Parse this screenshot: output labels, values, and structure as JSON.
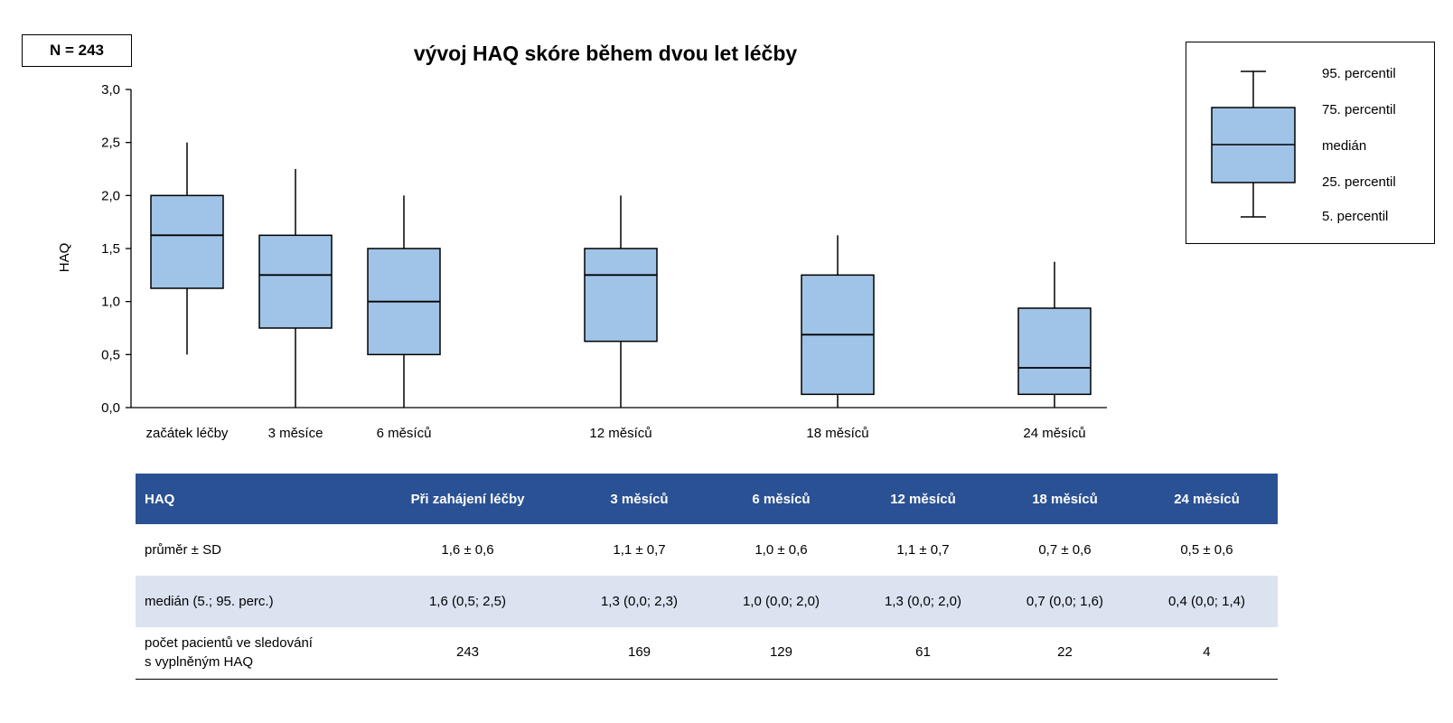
{
  "n_label": "N = 243",
  "chart_data": {
    "type": "boxplot",
    "title": "vývoj HAQ skóre během dvou let léčby",
    "ylabel": "HAQ",
    "ylim": [
      0,
      3
    ],
    "yticks": [
      "0,0",
      "0,5",
      "1,0",
      "1,5",
      "2,0",
      "2,5",
      "3,0"
    ],
    "categories": [
      "začátek léčby",
      "3 měsíce",
      "6 měsíců",
      "12 měsíců",
      "18 měsíců",
      "24 měsíců"
    ],
    "x_months": [
      0,
      3,
      6,
      12,
      18,
      24
    ],
    "boxes": [
      {
        "p5": 0.5,
        "q1": 1.125,
        "median": 1.625,
        "q3": 2.0,
        "p95": 2.5
      },
      {
        "p5": 0.0,
        "q1": 0.75,
        "median": 1.25,
        "q3": 1.625,
        "p95": 2.25
      },
      {
        "p5": 0.0,
        "q1": 0.5,
        "median": 1.0,
        "q3": 1.5,
        "p95": 2.0
      },
      {
        "p5": 0.0,
        "q1": 0.625,
        "median": 1.25,
        "q3": 1.5,
        "p95": 2.0
      },
      {
        "p5": 0.0,
        "q1": 0.125,
        "median": 0.6875,
        "q3": 1.25,
        "p95": 1.625
      },
      {
        "p5": 0.0,
        "q1": 0.125,
        "median": 0.375,
        "q3": 0.9375,
        "p95": 1.375
      }
    ],
    "colors": {
      "box_fill": "#9fc4e8",
      "stroke": "#000000"
    }
  },
  "legend": {
    "p95": "95. percentil",
    "q3": "75. percentil",
    "median": "medián",
    "q1": "25. percentil",
    "p5": "5. percentil"
  },
  "table": {
    "headers": [
      "HAQ",
      "Při zahájení léčby",
      "3 měsíců",
      "6 měsíců",
      "12 měsíců",
      "18 měsíců",
      "24 měsíců"
    ],
    "rows": [
      {
        "label": "průměr ± SD",
        "values": [
          "1,6 ± 0,6",
          "1,1 ± 0,7",
          "1,0 ± 0,6",
          "1,1 ± 0,7",
          "0,7 ± 0,6",
          "0,5 ± 0,6"
        ]
      },
      {
        "label": "medián (5.; 95. perc.)",
        "values": [
          "1,6 (0,5; 2,5)",
          "1,3 (0,0; 2,3)",
          "1,0 (0,0; 2,0)",
          "1,3 (0,0; 2,0)",
          "0,7 (0,0; 1,6)",
          "0,4 (0,0; 1,4)"
        ]
      },
      {
        "label_line1": "počet pacientů ve sledování",
        "label_line2": "s vyplněným HAQ",
        "values": [
          "243",
          "169",
          "129",
          "61",
          "22",
          "4"
        ]
      }
    ],
    "colors": {
      "header_bg": "#2a5193",
      "alt_row_bg": "#dbe3f1"
    }
  }
}
